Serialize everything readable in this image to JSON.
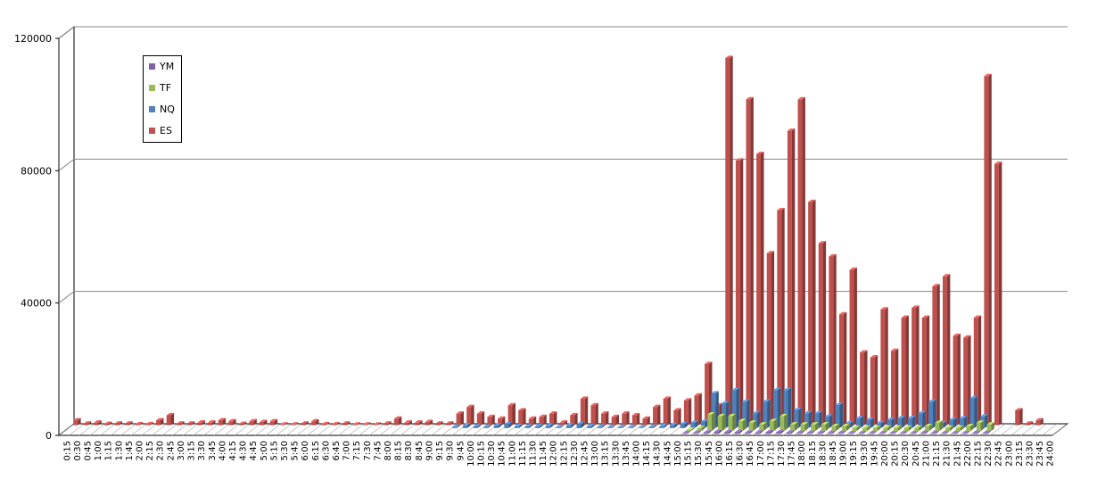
{
  "chart_data": {
    "type": "bar",
    "style": "3d-clustered-column",
    "title": "",
    "xlabel": "",
    "ylabel": "",
    "ylim": [
      0,
      120000
    ],
    "yticks": [
      "0",
      "40000",
      "80000",
      "120000"
    ],
    "grid": true,
    "legend_placement": "top-left",
    "categories": [
      "0:15",
      "0:30",
      "0:45",
      "1:00",
      "1:15",
      "1:30",
      "1:45",
      "2:00",
      "2:15",
      "2:30",
      "2:45",
      "3:00",
      "3:15",
      "3:30",
      "3:45",
      "4:00",
      "4:15",
      "4:30",
      "4:45",
      "5:00",
      "5:15",
      "5:30",
      "5:45",
      "6:00",
      "6:15",
      "6:30",
      "6:45",
      "7:00",
      "7:15",
      "7:30",
      "7:45",
      "8:00",
      "8:15",
      "8:30",
      "8:45",
      "9:00",
      "9:15",
      "9:30",
      "9:45",
      "10:00",
      "10:15",
      "10:30",
      "10:45",
      "11:00",
      "11:15",
      "11:30",
      "11:45",
      "12:00",
      "12:15",
      "12:30",
      "12:45",
      "13:00",
      "13:15",
      "13:30",
      "13:45",
      "14:00",
      "14:15",
      "14:30",
      "14:45",
      "15:00",
      "15:15",
      "15:30",
      "15:45",
      "16:00",
      "16:15",
      "16:30",
      "16:45",
      "17:00",
      "17:15",
      "17:30",
      "17:45",
      "18:00",
      "18:15",
      "18:30",
      "18:45",
      "19:00",
      "19:15",
      "19:30",
      "19:45",
      "20:00",
      "20:15",
      "20:30",
      "20:45",
      "21:00",
      "21:15",
      "21:30",
      "21:45",
      "22:00",
      "22:15",
      "22:30",
      "22:45",
      "23:00",
      "23:15",
      "23:30",
      "23:45",
      "24:00"
    ],
    "series": [
      {
        "name": "YM",
        "color": "#7f5fa8",
        "values": [
          0,
          0,
          0,
          0,
          0,
          0,
          0,
          0,
          0,
          0,
          0,
          0,
          0,
          0,
          0,
          0,
          0,
          0,
          0,
          0,
          0,
          0,
          0,
          0,
          0,
          0,
          0,
          0,
          0,
          0,
          0,
          0,
          0,
          0,
          0,
          0,
          0,
          0,
          0,
          0,
          0,
          0,
          0,
          0,
          0,
          0,
          0,
          0,
          0,
          0,
          0,
          0,
          0,
          0,
          0,
          0,
          0,
          0,
          0,
          0,
          200,
          300,
          400,
          600,
          500,
          500,
          400,
          400,
          500,
          500,
          400,
          300,
          300,
          300,
          300,
          300,
          200,
          200,
          200,
          200,
          200,
          200,
          200,
          300,
          300,
          200,
          200,
          200,
          300,
          300,
          0,
          0,
          0,
          0,
          0,
          0
        ]
      },
      {
        "name": "TF",
        "color": "#9bbb59",
        "values": [
          0,
          0,
          0,
          0,
          0,
          0,
          0,
          0,
          0,
          0,
          0,
          0,
          0,
          0,
          0,
          0,
          0,
          0,
          0,
          0,
          0,
          0,
          0,
          0,
          0,
          0,
          0,
          0,
          0,
          0,
          0,
          0,
          0,
          0,
          0,
          0,
          0,
          0,
          0,
          0,
          0,
          0,
          0,
          0,
          0,
          0,
          0,
          0,
          0,
          0,
          0,
          0,
          0,
          0,
          0,
          0,
          0,
          0,
          0,
          0,
          400,
          900,
          5000,
          4500,
          4500,
          3000,
          2500,
          2000,
          3000,
          4500,
          2000,
          2000,
          2000,
          2000,
          1500,
          1500,
          1000,
          1000,
          1000,
          1000,
          1000,
          1000,
          1000,
          1500,
          2500,
          1000,
          1000,
          1500,
          2500,
          2000,
          0,
          0,
          0,
          0,
          0,
          0
        ]
      },
      {
        "name": "NQ",
        "color": "#4f81bd",
        "values": [
          0,
          0,
          0,
          0,
          0,
          0,
          0,
          0,
          0,
          0,
          0,
          0,
          0,
          0,
          0,
          0,
          0,
          0,
          0,
          0,
          0,
          0,
          0,
          0,
          0,
          0,
          0,
          0,
          0,
          0,
          0,
          0,
          0,
          0,
          0,
          0,
          0,
          400,
          800,
          500,
          400,
          800,
          1200,
          600,
          500,
          600,
          700,
          300,
          800,
          1200,
          600,
          400,
          300,
          300,
          300,
          200,
          400,
          600,
          900,
          1200,
          1600,
          2000,
          10500,
          7500,
          11500,
          8000,
          4500,
          8000,
          11500,
          11500,
          5500,
          4500,
          4500,
          3500,
          7000,
          1500,
          3000,
          2500,
          1500,
          2500,
          3000,
          3000,
          4500,
          8000,
          1500,
          2500,
          3000,
          9000,
          3500,
          0,
          0,
          0,
          0,
          0,
          0,
          0
        ]
      },
      {
        "name": "ES",
        "color": "#c0504d",
        "values": [
          1500,
          500,
          800,
          400,
          500,
          500,
          300,
          300,
          1500,
          3000,
          500,
          500,
          800,
          800,
          1500,
          1200,
          400,
          1200,
          1000,
          1200,
          200,
          200,
          500,
          1200,
          300,
          300,
          500,
          200,
          200,
          200,
          500,
          2000,
          800,
          800,
          1000,
          500,
          500,
          3500,
          5500,
          3500,
          2500,
          2000,
          6000,
          4500,
          2000,
          2500,
          3500,
          800,
          3000,
          8000,
          6000,
          3500,
          2500,
          3500,
          3000,
          2000,
          5500,
          8000,
          4500,
          7500,
          9000,
          18500,
          6000,
          111000,
          80000,
          98500,
          82000,
          52000,
          65000,
          89000,
          98500,
          67500,
          55000,
          51000,
          33500,
          47000,
          22000,
          20500,
          35000,
          22500,
          32500,
          35500,
          32500,
          42000,
          45000,
          27000,
          26500,
          32500,
          105500,
          79000,
          0,
          4500,
          500,
          1500,
          0,
          0
        ]
      }
    ]
  }
}
